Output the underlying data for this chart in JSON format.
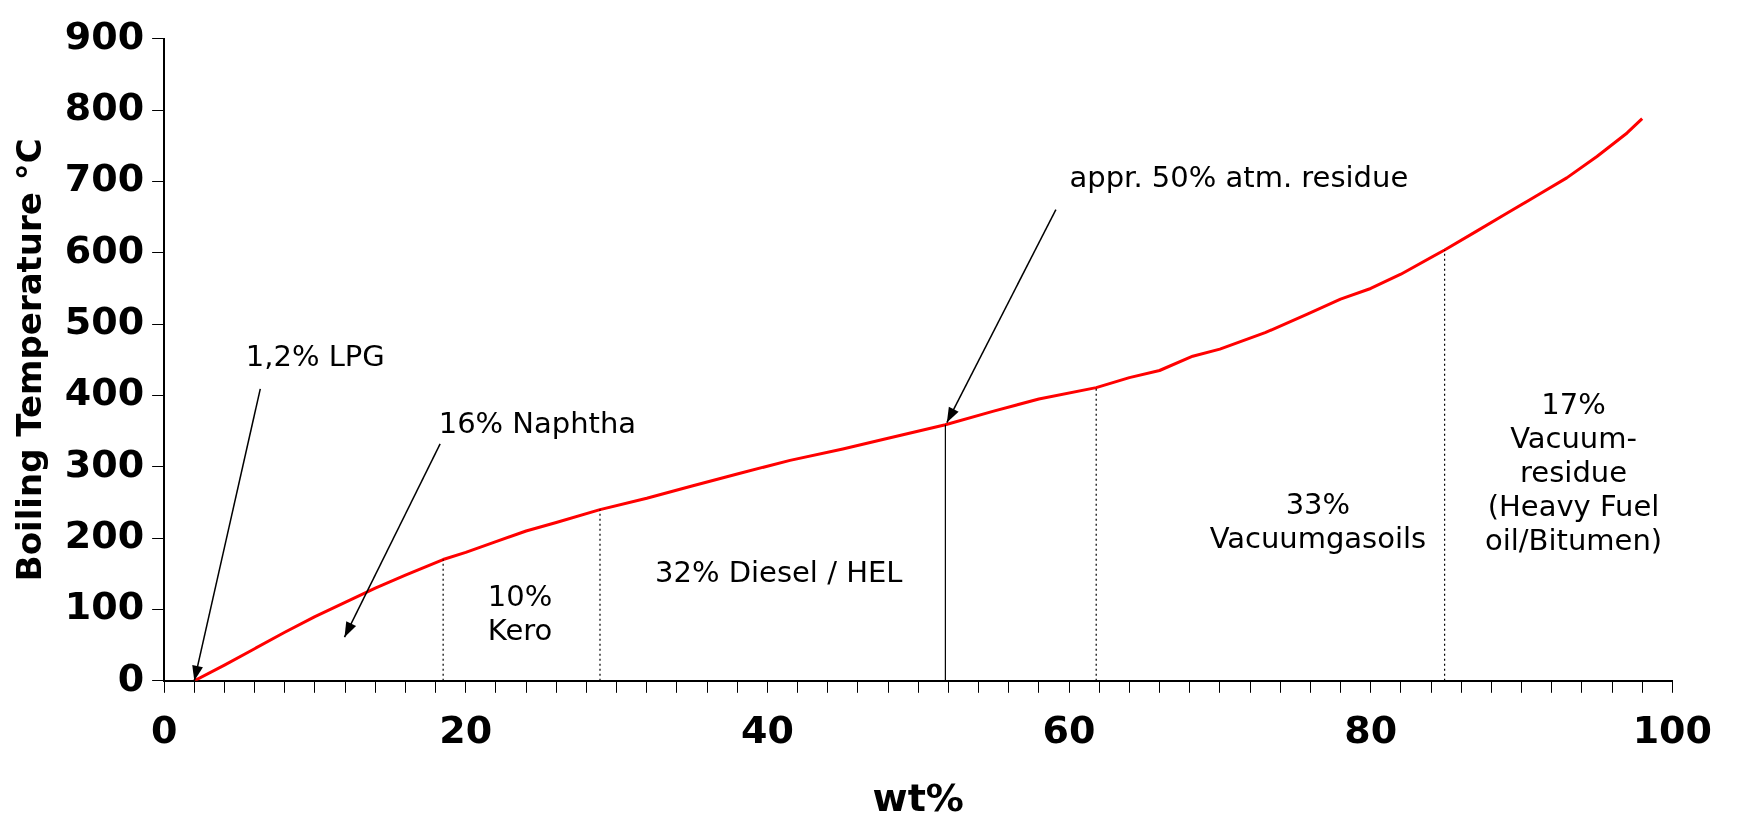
{
  "chart_data": {
    "type": "line",
    "xlabel": "wt%",
    "ylabel": "Boiling Temperature °C",
    "x": [
      2,
      4,
      6,
      8,
      10,
      12,
      14,
      16,
      18.5,
      20,
      22,
      24,
      26,
      28.9,
      32,
      35,
      38,
      41.5,
      45,
      48,
      51.8,
      55,
      58,
      61.8,
      64,
      66,
      68.2,
      70,
      73,
      75.8,
      78,
      80,
      82,
      84.9,
      87,
      89,
      91,
      93,
      95,
      97,
      98
    ],
    "series": [
      {
        "color": "#ff0000",
        "values": [
          0,
          22,
          45,
          68,
          90,
          110,
          130,
          148,
          170,
          180,
          195,
          210,
          222,
          240,
          256,
          273,
          290,
          309,
          325,
          340,
          359,
          378,
          395,
          411,
          425,
          435,
          455,
          465,
          488,
          514,
          535,
          550,
          570,
          604,
          630,
          655,
          680,
          705,
          735,
          768,
          788
        ]
      }
    ],
    "xlim": [
      0,
      100
    ],
    "xticks": [
      0,
      {
        "value": 2,
        "label": null
      },
      {
        "value": 4,
        "label": null
      },
      {
        "value": 6,
        "label": null
      },
      {
        "value": 8,
        "label": null
      },
      {
        "value": 10,
        "label": null
      },
      {
        "value": 12,
        "label": null
      },
      {
        "value": 14,
        "label": null
      },
      {
        "value": 16,
        "label": null
      },
      {
        "value": 18,
        "label": null
      },
      20,
      {
        "value": 22,
        "label": null
      },
      {
        "value": 24,
        "label": null
      },
      {
        "value": 26,
        "label": null
      },
      {
        "value": 28,
        "label": null
      },
      {
        "value": 30,
        "label": null
      },
      {
        "value": 32,
        "label": null
      },
      {
        "value": 34,
        "label": null
      },
      {
        "value": 36,
        "label": null
      },
      {
        "value": 38,
        "label": null
      },
      40,
      {
        "value": 42,
        "label": null
      },
      {
        "value": 44,
        "label": null
      },
      {
        "value": 46,
        "label": null
      },
      {
        "value": 48,
        "label": null
      },
      {
        "value": 50,
        "label": null
      },
      {
        "value": 52,
        "label": null
      },
      {
        "value": 54,
        "label": null
      },
      {
        "value": 56,
        "label": null
      },
      {
        "value": 58,
        "label": null
      },
      60,
      {
        "value": 62,
        "label": null
      },
      {
        "value": 64,
        "label": null
      },
      {
        "value": 66,
        "label": null
      },
      {
        "value": 68,
        "label": null
      },
      {
        "value": 70,
        "label": null
      },
      {
        "value": 72,
        "label": null
      },
      {
        "value": 74,
        "label": null
      },
      {
        "value": 76,
        "label": null
      },
      {
        "value": 78,
        "label": null
      },
      80,
      {
        "value": 82,
        "label": null
      },
      {
        "value": 84,
        "label": null
      },
      {
        "value": 86,
        "label": null
      },
      {
        "value": 88,
        "label": null
      },
      {
        "value": 90,
        "label": null
      },
      {
        "value": 92,
        "label": null
      },
      {
        "value": 94,
        "label": null
      },
      {
        "value": 96,
        "label": null
      },
      {
        "value": 98,
        "label": null
      },
      100
    ],
    "ylim": [
      0,
      900
    ],
    "yticks": [
      0,
      100,
      200,
      300,
      400,
      500,
      600,
      700,
      800,
      900
    ],
    "grid": false,
    "legend": false,
    "marker": "none",
    "line_style": "solid",
    "ref_lines": [
      {
        "axis": "x",
        "value": 18.5,
        "line_style": "dotted"
      },
      {
        "axis": "x",
        "value": 28.9,
        "line_style": "dotted"
      },
      {
        "axis": "x",
        "value": 51.8,
        "line_style": "solid"
      },
      {
        "axis": "x",
        "value": 61.8,
        "line_style": "dotted"
      },
      {
        "axis": "x",
        "value": 84.9,
        "line_style": "dotted"
      }
    ],
    "annotations": [
      {
        "text": "1,2% LPG",
        "x": 2,
        "y": 0
      },
      "16% Naphtha",
      {
        "text": "appr. 50% atm. residue",
        "x": 51.9,
        "y": 362
      },
      "10%\nKero",
      "32% Diesel / HEL",
      "33%\nVacuumgasoils",
      "17%\nVacuum-\nresidue\n(Heavy Fuel\noil/Bitumen)"
    ]
  }
}
